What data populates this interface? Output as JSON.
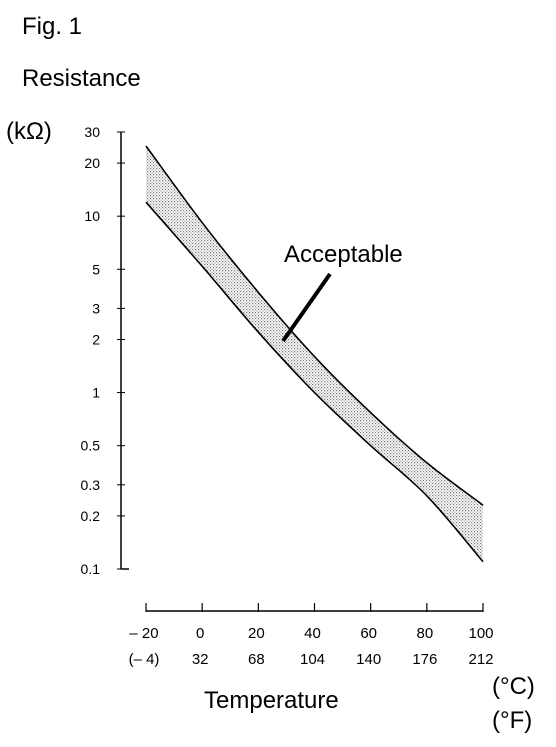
{
  "figure_label": "Fig. 1",
  "chart_data": {
    "type": "area",
    "title": "",
    "ylabel": "Resistance",
    "yunit": "(kΩ)",
    "xlabel": "Temperature",
    "xunit_c": "(°C)",
    "xunit_f": "(°F)",
    "yscale": "log",
    "ylim": [
      0.1,
      30
    ],
    "xlim": [
      -20,
      100
    ],
    "grid": false,
    "y_ticks": [
      {
        "value": 30,
        "label": "30"
      },
      {
        "value": 20,
        "label": "20"
      },
      {
        "value": 10,
        "label": "10"
      },
      {
        "value": 5,
        "label": "5"
      },
      {
        "value": 3,
        "label": "3"
      },
      {
        "value": 2,
        "label": "2"
      },
      {
        "value": 1,
        "label": "1"
      },
      {
        "value": 0.5,
        "label": "0.5"
      },
      {
        "value": 0.3,
        "label": "0.3"
      },
      {
        "value": 0.2,
        "label": "0.2"
      },
      {
        "value": 0.1,
        "label": "0.1"
      }
    ],
    "x_ticks": [
      {
        "value": -20,
        "label_c": "– 20",
        "label_f": "(– 4)"
      },
      {
        "value": 0,
        "label_c": "0",
        "label_f": "32"
      },
      {
        "value": 20,
        "label_c": "20",
        "label_f": "68"
      },
      {
        "value": 40,
        "label_c": "40",
        "label_f": "104"
      },
      {
        "value": 60,
        "label_c": "60",
        "label_f": "140"
      },
      {
        "value": 80,
        "label_c": "80",
        "label_f": "176"
      },
      {
        "value": 100,
        "label_c": "100",
        "label_f": "212"
      }
    ],
    "x": [
      -20,
      0,
      20,
      40,
      60,
      80,
      100
    ],
    "series": [
      {
        "values": [
          25,
          9.2,
          3.7,
          1.6,
          0.77,
          0.4,
          0.23
        ]
      },
      {
        "values": [
          12,
          5.2,
          2.2,
          1.0,
          0.5,
          0.26,
          0.11
        ]
      }
    ],
    "band_label": "Acceptable",
    "band_color": "#9a9a9a"
  }
}
